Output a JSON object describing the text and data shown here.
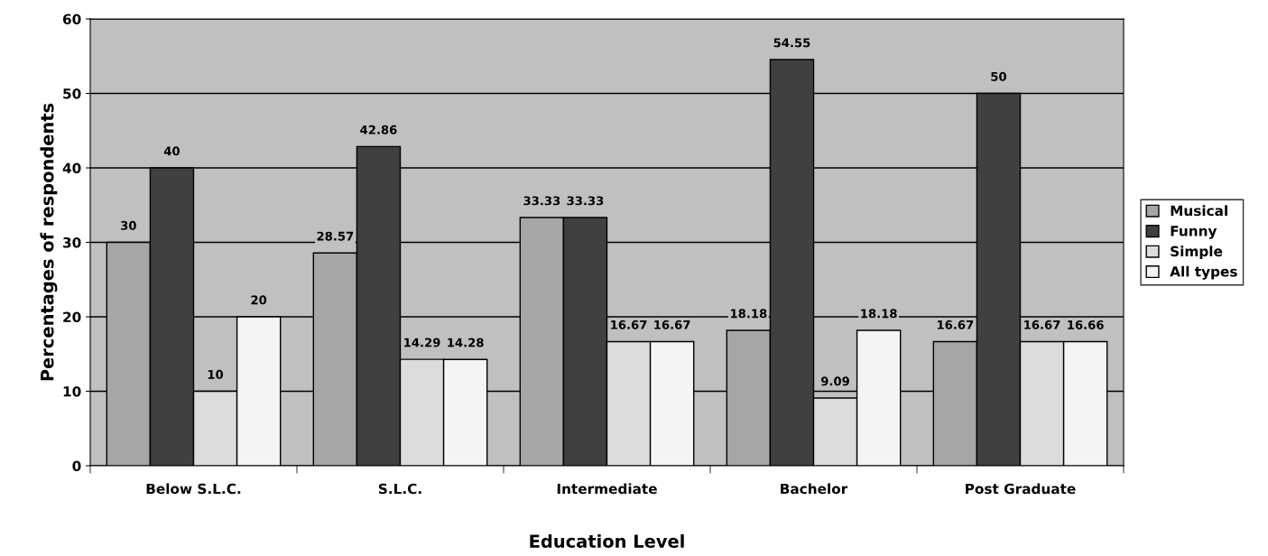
{
  "chart_data": {
    "type": "bar",
    "xlabel": "Education Level",
    "ylabel": "Percentages of respondents",
    "categories": [
      "Below S.L.C.",
      "S.L.C.",
      "Intermediate",
      "Bachelor",
      "Post Graduate"
    ],
    "series": [
      {
        "name": "Musical",
        "color": "#a6a6a6",
        "values": [
          30,
          28.57,
          33.33,
          18.18,
          16.67
        ]
      },
      {
        "name": "Funny",
        "color": "#404040",
        "values": [
          40,
          42.86,
          33.33,
          54.55,
          50
        ]
      },
      {
        "name": "Simple",
        "color": "#dcdcdc",
        "values": [
          10,
          14.29,
          16.67,
          9.09,
          16.67
        ]
      },
      {
        "name": "All types",
        "color": "#f4f4f4",
        "values": [
          20,
          14.28,
          16.67,
          18.18,
          16.66
        ]
      }
    ],
    "ylim": [
      0,
      60
    ],
    "yticks": [
      0,
      10,
      20,
      30,
      40,
      50,
      60
    ],
    "grid": "y",
    "legend": "right",
    "data_labels": true
  }
}
